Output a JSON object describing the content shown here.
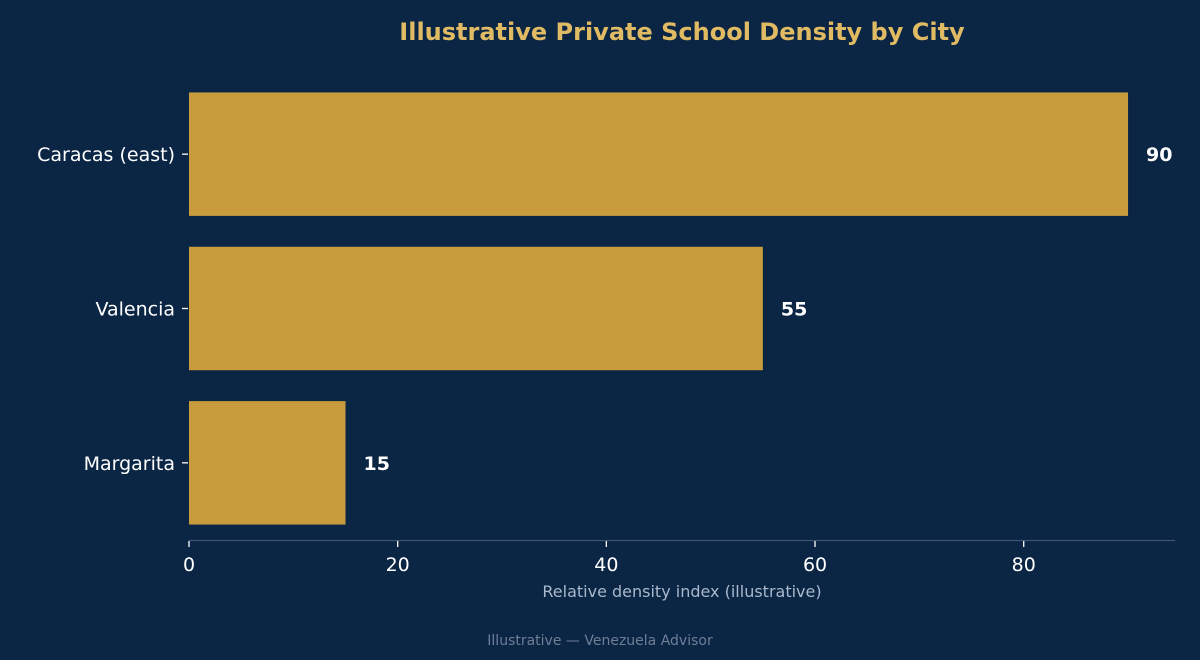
{
  "chart_data": {
    "type": "bar",
    "orientation": "horizontal",
    "title": "Illustrative Private School Density by City",
    "xlabel": "Relative density index (illustrative)",
    "ylabel": "",
    "categories": [
      "Caracas (east)",
      "Valencia",
      "Margarita"
    ],
    "values": [
      90,
      55,
      15
    ],
    "value_labels": [
      "90",
      "55",
      "15"
    ],
    "xlim": [
      0,
      94.5
    ],
    "xticks": [
      0,
      20,
      40,
      60,
      80
    ],
    "xtick_labels": [
      "0",
      "20",
      "40",
      "60",
      "80"
    ],
    "grid": false,
    "bar_color": "#c89c3c",
    "background_color": "#0b2545",
    "title_color": "#e0bb64"
  },
  "footer": {
    "source": "Illustrative — Venezuela Advisor"
  }
}
